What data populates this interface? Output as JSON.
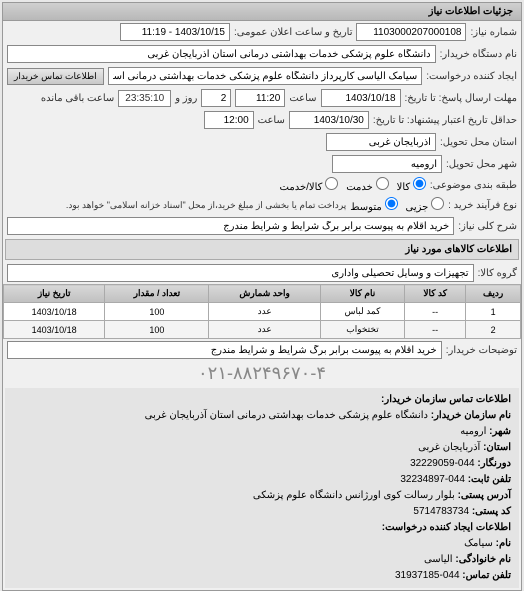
{
  "panel_title": "جزئیات اطلاعات نیاز",
  "fields": {
    "number_label": "شماره نیاز:",
    "number_value": "1103000207000108",
    "announce_label": "تاریخ و ساعت اعلان عمومی:",
    "announce_value": "1403/10/15 - 11:19",
    "org_label": "نام دستگاه خریدار:",
    "org_value": "دانشگاه علوم پزشکی خدمات بهداشتی درمانی استان آذربایجان غربی",
    "requester_label": "ایجاد کننده درخواست:",
    "requester_value": "سیامک الیاسی کارپرداز دانشگاه علوم پزشکی خدمات بهداشتی درمانی استان",
    "contact_btn": "اطلاعات تماس خریدار",
    "deadline_label": "مهلت ارسال پاسخ: تا تاریخ:",
    "deadline_date": "1403/10/18",
    "time_label": "ساعت",
    "deadline_time": "11:20",
    "days_count": "2",
    "days_label": "روز و",
    "timer": "23:35:10",
    "timer_label": "ساعت باقی مانده",
    "delivery_label": "حداقل تاریخ اعتبار پیشنهاد: تا تاریخ:",
    "delivery_date": "1403/10/30",
    "delivery_time": "12:00",
    "province_label": "استان محل تحویل:",
    "province_value": "آذربایجان غربی",
    "city_label": "شهر محل تحویل:",
    "city_value": "ارومیه",
    "category_label": "طبقه بندی موضوعی:",
    "cat_goods": "کالا",
    "cat_service": "خدمت",
    "cat_both": "کالا/خدمت",
    "process_label": "نوع فرآیند خرید :",
    "proc_partial": "جزیی",
    "proc_medium": "متوسط",
    "proc_note": "پرداخت تمام یا بخشی از مبلغ خرید،از محل \"اسناد خزانه اسلامی\" خواهد بود.",
    "desc_label": "شرح کلی نیاز:",
    "desc_value": "خرید اقلام به پیوست برابر برگ شرایط و شرایط مندرج",
    "goods_section": "اطلاعات کالاهای مورد نیاز",
    "group_label": "گروه کالا:",
    "group_value": "تجهیزات و وسایل تحصیلی واداری"
  },
  "table": {
    "columns": [
      "ردیف",
      "کد کالا",
      "نام کالا",
      "واحد شمارش",
      "تعداد / مقدار",
      "تاریخ نیاز"
    ],
    "rows": [
      [
        "1",
        "--",
        "کمد لباس",
        "عدد",
        "100",
        "1403/10/18"
      ],
      [
        "2",
        "--",
        "تختخواب",
        "عدد",
        "100",
        "1403/10/18"
      ]
    ]
  },
  "buyer_notes": {
    "label": "توضیحات خریدار:",
    "value": "خرید اقلام به پیوست برابر برگ شرایط و شرایط مندرج"
  },
  "contact_section": {
    "title": "اطلاعات تماس سازمان خریدار:",
    "org_name_label": "نام سازمان خریدار:",
    "org_name": "دانشگاه علوم پزشکی خدمات بهداشتی درمانی استان آذربایجان غربی",
    "city_label": "شهر:",
    "city": "ارومیه",
    "province_label": "استان:",
    "province": "آذربایجان غربی",
    "fax_label": "دورنگار:",
    "fax": "044-32229059",
    "post_label": "تلفن ثابت:",
    "post": "044-32234897",
    "address_label": "آدرس پستی:",
    "address": "بلوار رسالت کوی اورژانس دانشگاه علوم پزشکی",
    "postal_label": "کد پستی:",
    "postal": "5714783734",
    "creator_title": "اطلاعات ایجاد کننده درخواست:",
    "name_label": "نام:",
    "name": "سیامک",
    "lastname_label": "نام خانوادگی:",
    "lastname": "الیاسی",
    "phone_label": "تلفن تماس:",
    "phone": "044-31937185",
    "large_phone": "۰۲۱-۸۸۲۴۹۶۷۰-۴"
  }
}
